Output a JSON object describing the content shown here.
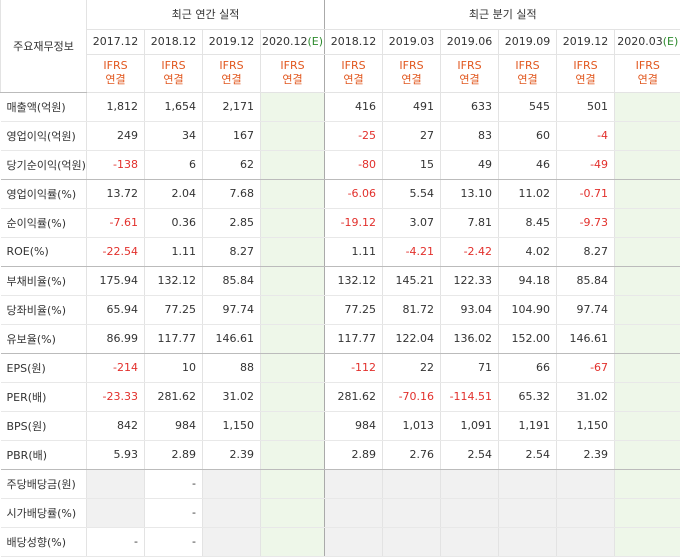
{
  "header": {
    "item_label": "주요재무정보",
    "annual_title": "최근 연간 실적",
    "quarterly_title": "최근 분기 실적",
    "periods": [
      {
        "label": "2017.12",
        "est": ""
      },
      {
        "label": "2018.12",
        "est": ""
      },
      {
        "label": "2019.12",
        "est": ""
      },
      {
        "label": "2020.12",
        "est": "(E)"
      },
      {
        "label": "2018.12",
        "est": ""
      },
      {
        "label": "2019.03",
        "est": ""
      },
      {
        "label": "2019.06",
        "est": ""
      },
      {
        "label": "2019.09",
        "est": ""
      },
      {
        "label": "2019.12",
        "est": ""
      },
      {
        "label": "2020.03",
        "est": "(E)"
      }
    ],
    "ifrs_line1": "IFRS",
    "ifrs_line2": "연결"
  },
  "rows": [
    {
      "label": "매출액(억원)",
      "values": [
        "1,812",
        "1,654",
        "2,171",
        "",
        "416",
        "491",
        "633",
        "545",
        "501",
        ""
      ]
    },
    {
      "label": "영업이익(억원)",
      "values": [
        "249",
        "34",
        "167",
        "",
        "-25",
        "27",
        "83",
        "60",
        "-4",
        ""
      ]
    },
    {
      "label": "당기순이익(억원)",
      "values": [
        "-138",
        "6",
        "62",
        "",
        "-80",
        "15",
        "49",
        "46",
        "-49",
        ""
      ]
    },
    {
      "label": "영업이익률(%)",
      "values": [
        "13.72",
        "2.04",
        "7.68",
        "",
        "-6.06",
        "5.54",
        "13.10",
        "11.02",
        "-0.71",
        ""
      ]
    },
    {
      "label": "순이익률(%)",
      "values": [
        "-7.61",
        "0.36",
        "2.85",
        "",
        "-19.12",
        "3.07",
        "7.81",
        "8.45",
        "-9.73",
        ""
      ]
    },
    {
      "label": "ROE(%)",
      "values": [
        "-22.54",
        "1.11",
        "8.27",
        "",
        "1.11",
        "-4.21",
        "-2.42",
        "4.02",
        "8.27",
        ""
      ]
    },
    {
      "label": "부채비율(%)",
      "values": [
        "175.94",
        "132.12",
        "85.84",
        "",
        "132.12",
        "145.21",
        "122.33",
        "94.18",
        "85.84",
        ""
      ]
    },
    {
      "label": "당좌비율(%)",
      "values": [
        "65.94",
        "77.25",
        "97.74",
        "",
        "77.25",
        "81.72",
        "93.04",
        "104.90",
        "97.74",
        ""
      ]
    },
    {
      "label": "유보율(%)",
      "values": [
        "86.99",
        "117.77",
        "146.61",
        "",
        "117.77",
        "122.04",
        "136.02",
        "152.00",
        "146.61",
        ""
      ]
    },
    {
      "label": "EPS(원)",
      "values": [
        "-214",
        "10",
        "88",
        "",
        "-112",
        "22",
        "71",
        "66",
        "-67",
        ""
      ]
    },
    {
      "label": "PER(배)",
      "values": [
        "-23.33",
        "281.62",
        "31.02",
        "",
        "281.62",
        "-70.16",
        "-114.51",
        "65.32",
        "31.02",
        ""
      ]
    },
    {
      "label": "BPS(원)",
      "values": [
        "842",
        "984",
        "1,150",
        "",
        "984",
        "1,013",
        "1,091",
        "1,191",
        "1,150",
        ""
      ]
    },
    {
      "label": "PBR(배)",
      "values": [
        "5.93",
        "2.89",
        "2.39",
        "",
        "2.89",
        "2.76",
        "2.54",
        "2.54",
        "2.39",
        ""
      ]
    },
    {
      "label": "주당배당금(원)",
      "values": [
        "",
        "-",
        "",
        "",
        "",
        "",
        "",
        "",
        "",
        ""
      ]
    },
    {
      "label": "시가배당률(%)",
      "values": [
        "",
        "-",
        "",
        "",
        "",
        "",
        "",
        "",
        "",
        ""
      ]
    },
    {
      "label": "배당성향(%)",
      "values": [
        "-",
        "-",
        "",
        "",
        "",
        "",
        "",
        "",
        "",
        ""
      ]
    }
  ]
}
